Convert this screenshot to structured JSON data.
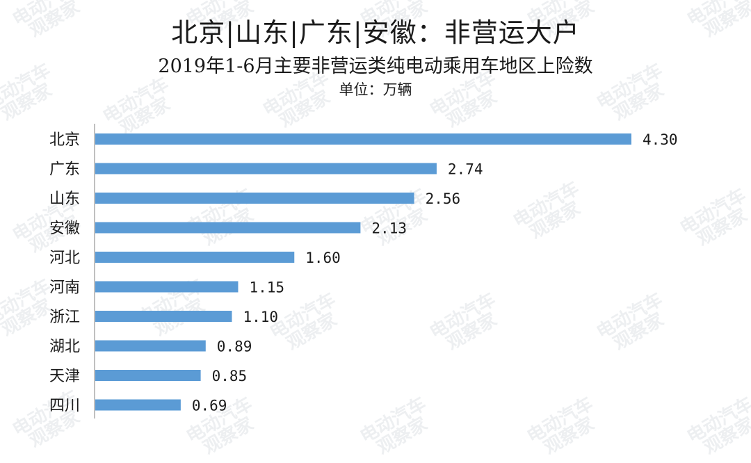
{
  "title": "北京|山东|广东|安徽：非营运大户",
  "subtitle": "2019年1-6月主要非营运类纯电动乘用车地区上险数",
  "unit_label": "单位：万辆",
  "watermark": {
    "line1": "电动汽车",
    "line2": "观察家"
  },
  "colors": {
    "bar": "#5b9bd5",
    "axis": "#c0c0c0"
  },
  "chart_data": {
    "type": "bar",
    "orientation": "horizontal",
    "title": "北京|山东|广东|安徽：非营运大户",
    "subtitle": "2019年1-6月主要非营运类纯电动乘用车地区上险数",
    "unit": "单位：万辆",
    "categories": [
      "北京",
      "广东",
      "山东",
      "安徽",
      "河北",
      "河南",
      "浙江",
      "湖北",
      "天津",
      "四川"
    ],
    "values": [
      4.3,
      2.74,
      2.56,
      2.13,
      1.6,
      1.15,
      1.1,
      0.89,
      0.85,
      0.69
    ],
    "value_labels": [
      "4.30",
      "2.74",
      "2.56",
      "2.13",
      "1.60",
      "1.15",
      "1.10",
      "0.89",
      "0.85",
      "0.69"
    ],
    "xlim": [
      0,
      4.5
    ],
    "grid": false,
    "legend": "none"
  }
}
